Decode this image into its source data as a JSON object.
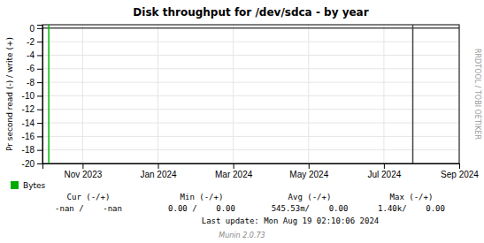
{
  "chart_data": {
    "type": "line",
    "title": "Disk throughput for /dev/sdca - by year",
    "ylabel": "Pr second read (-) / write (+)",
    "xlim": [
      1696118400,
      1724803200
    ],
    "ylim": [
      -20,
      0.5
    ],
    "yticks": [
      0.0,
      -2.0,
      -4.0,
      -6.0,
      -8.0,
      -10.0,
      -12.0,
      -14.0,
      -16.0,
      -18.0,
      -20.0
    ],
    "xticks": [
      {
        "value": 1698883200,
        "label": "Nov 2023"
      },
      {
        "value": 1704067200,
        "label": "Jan 2024"
      },
      {
        "value": 1709251200,
        "label": "Mar 2024"
      },
      {
        "value": 1714435200,
        "label": "May 2024"
      },
      {
        "value": 1719619200,
        "label": "Jul 2024"
      },
      {
        "value": 1724803200,
        "label": "Sep 2024"
      }
    ],
    "grid": true,
    "series": [
      {
        "name": "Bytes",
        "color": "#00aa00"
      }
    ],
    "hlines": [
      0
    ],
    "vlines": [
      {
        "x": 1696550400,
        "color": "#00bb00"
      },
      {
        "x": 1721606400,
        "color": "#444444"
      }
    ],
    "stats_headers": [
      "Cur (-/+)",
      "Min (-/+)",
      "Avg (-/+)",
      "Max (-/+)"
    ],
    "stats_values": [
      "-nan /    -nan",
      "0.00 /    0.00",
      "545.53m/    0.00",
      "1.40k/    0.00"
    ],
    "annotations": [
      "Last update: Mon Aug 19 02:10:06 2024",
      "RRDTOOL / TOBI OETIKER",
      "Munin 2.0.73"
    ]
  }
}
